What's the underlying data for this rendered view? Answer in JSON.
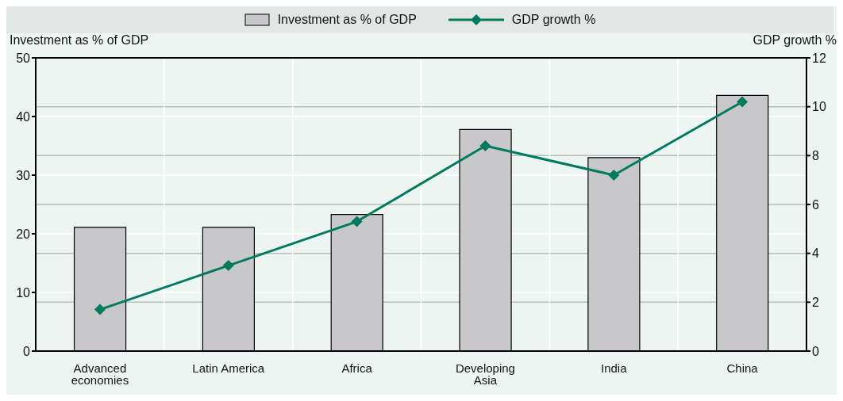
{
  "chart_data": {
    "type": "bar",
    "ylabel": "Investment as % of GDP",
    "y2label": "GDP growth %",
    "categories": [
      "Advanced economies",
      "Latin America",
      "Africa",
      "Developing Asia",
      "India",
      "China"
    ],
    "series": [
      {
        "name": "Investment as % of GDP",
        "color": "#c8c8ca",
        "values": [
          21.1,
          21.1,
          23.3,
          37.8,
          33.0,
          43.6
        ]
      },
      {
        "name": "GDP growth %",
        "type": "line",
        "axis": "y2",
        "color": "#007a5e",
        "values": [
          1.7,
          3.5,
          5.3,
          8.4,
          7.2,
          10.2
        ]
      }
    ],
    "ylim": [
      0,
      50
    ],
    "yticks": [
      0,
      10,
      20,
      30,
      40,
      50
    ],
    "y2lim": [
      0,
      12
    ],
    "y2ticks": [
      0,
      2,
      4,
      6,
      8,
      10,
      12
    ],
    "grid": true,
    "legend": "top",
    "marker": "diamond",
    "line_style": "solid"
  }
}
